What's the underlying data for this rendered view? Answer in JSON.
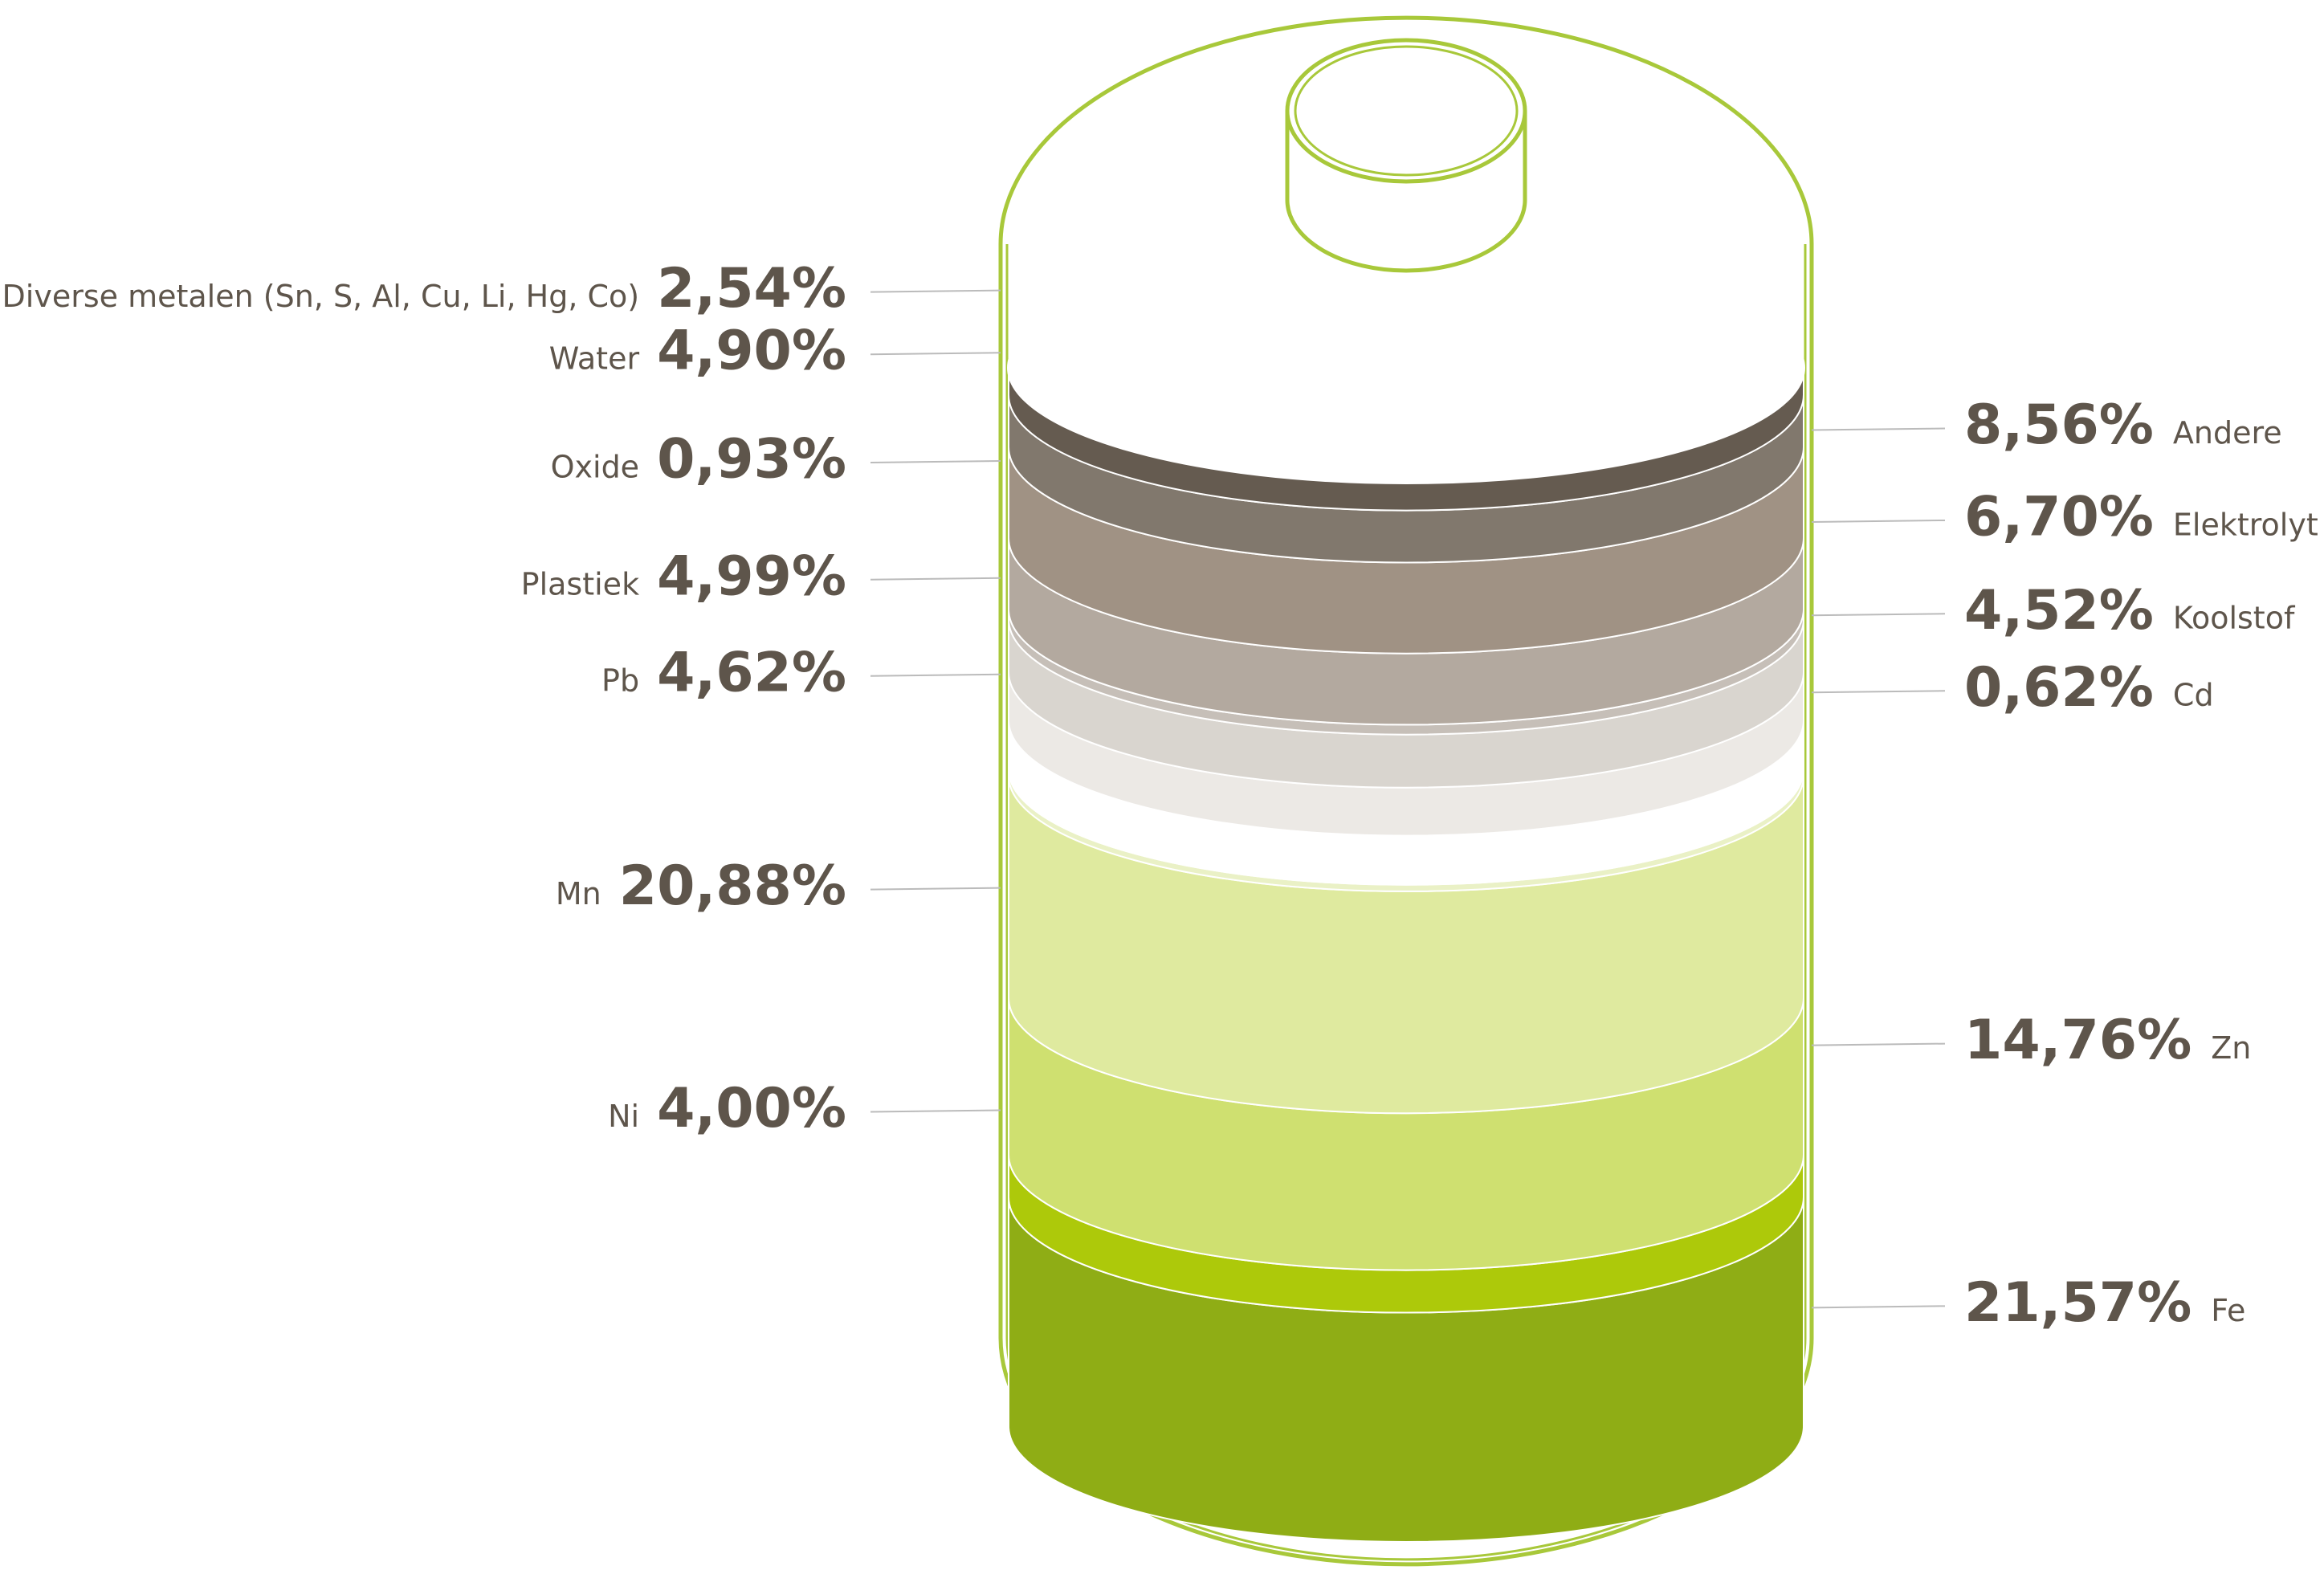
{
  "chart_data": {
    "type": "stacked-cylinder",
    "series": [
      {
        "name": "Fe",
        "values": [
          21.57
        ],
        "value_labels": [
          "21,57%"
        ],
        "color": "#8fad15"
      },
      {
        "name": "Ni",
        "values": [
          4.0
        ],
        "value_labels": [
          "4,00%"
        ],
        "color": "#adc90a"
      },
      {
        "name": "Zn",
        "values": [
          14.76
        ],
        "value_labels": [
          "14,76%"
        ],
        "color": "#cfe070"
      },
      {
        "name": "Mn",
        "values": [
          20.88
        ],
        "value_labels": [
          "20,88%"
        ],
        "color": "#dfea9f"
      },
      {
        "name": "Cd",
        "values": [
          0.62
        ],
        "value_labels": [
          "0,62%"
        ],
        "color": "#eaf1c6"
      },
      {
        "name": "Pb",
        "values": [
          4.62
        ],
        "value_labels": [
          "4,62%"
        ],
        "color": "#ffffff"
      },
      {
        "name": "Koolstof",
        "values": [
          4.52
        ],
        "value_labels": [
          "4,52%"
        ],
        "color": "#ece9e5"
      },
      {
        "name": "Plastiek",
        "values": [
          4.99
        ],
        "value_labels": [
          "4,99%"
        ],
        "color": "#d9d5cf"
      },
      {
        "name": "Oxide",
        "values": [
          0.93
        ],
        "value_labels": [
          "0,93%"
        ],
        "color": "#c6bfb8"
      },
      {
        "name": "Elektrolyt",
        "values": [
          6.7
        ],
        "value_labels": [
          "6,70%"
        ],
        "color": "#b3a99f"
      },
      {
        "name": "Andere",
        "values": [
          8.56
        ],
        "value_labels": [
          "8,56%"
        ],
        "color": "#a09284"
      },
      {
        "name": "Water",
        "values": [
          4.9
        ],
        "value_labels": [
          "4,90%"
        ],
        "color": "#81786d"
      },
      {
        "name": "Diverse metalen (Sn, S, Al, Cu, Li, Hg, Co)",
        "values": [
          2.54
        ],
        "value_labels": [
          "2,54%"
        ],
        "color": "#655b50"
      }
    ]
  }
}
